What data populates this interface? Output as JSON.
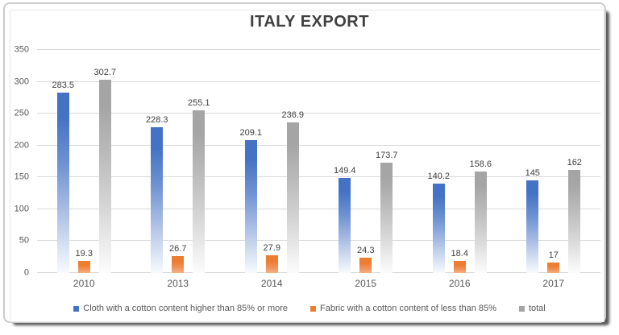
{
  "chart_data": {
    "type": "bar",
    "title": "ITALY EXPORT",
    "categories": [
      "2010",
      "2013",
      "2014",
      "2015",
      "2016",
      "2017"
    ],
    "series": [
      {
        "name": "Cloth with a cotton content higher than 85% or more",
        "color": "#4472C4",
        "values": [
          283.5,
          228.3,
          209.1,
          149.4,
          140.2,
          145
        ]
      },
      {
        "name": "Fabric with a cotton content of less than 85%",
        "color": "#ED7D31",
        "values": [
          19.3,
          26.7,
          27.9,
          24.3,
          18.4,
          17
        ]
      },
      {
        "name": "total",
        "color": "#A5A5A5",
        "values": [
          302.7,
          255.1,
          236.9,
          173.7,
          158.6,
          162
        ]
      }
    ],
    "ylim": [
      0,
      350
    ],
    "yticks": [
      0,
      50,
      100,
      150,
      200,
      250,
      300,
      350
    ],
    "grid": true,
    "legend_position": "bottom",
    "data_labels": true,
    "bar_fill_style": "vertical-gradient-fade-to-white",
    "colors": {
      "gridline": "#D9D9D9",
      "axis_text": "#595959",
      "data_label_text": "#404040",
      "title_text": "#404040",
      "frame_border": "#CBCBCB"
    }
  }
}
